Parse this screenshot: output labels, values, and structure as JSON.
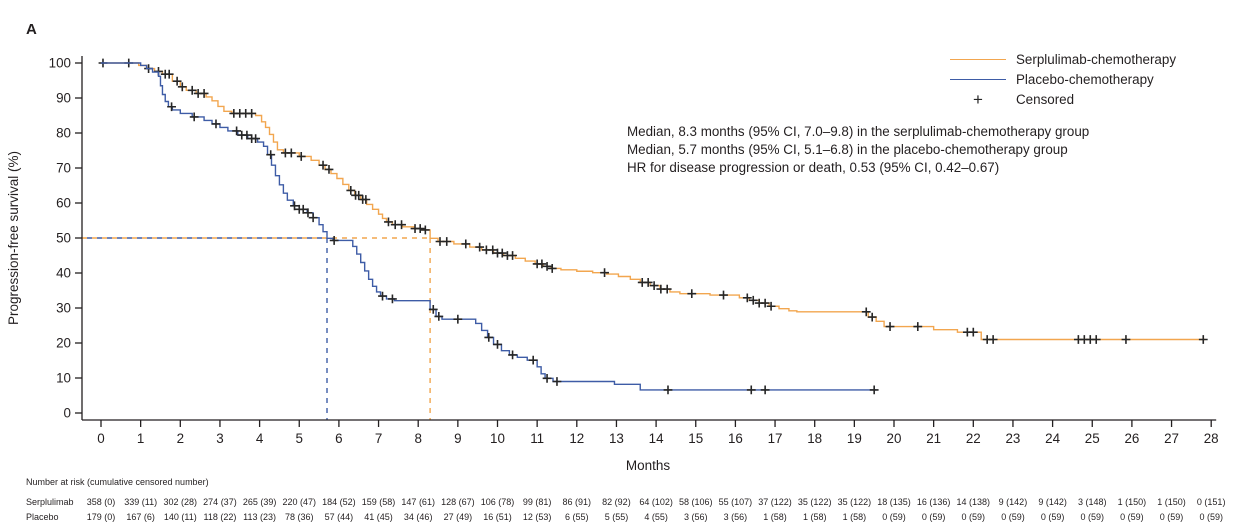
{
  "panel_label": "A",
  "colors": {
    "serplulimab": "#F2A64F",
    "placebo": "#3E5CA6",
    "censor": "#262626",
    "axis": "#231f20"
  },
  "legend": {
    "items": [
      {
        "label": "Serplulimab-chemotherapy",
        "marker": "line",
        "color_key": "serplulimab"
      },
      {
        "label": "Placebo-chemotherapy",
        "marker": "line",
        "color_key": "placebo"
      },
      {
        "label": "Censored",
        "marker": "plus",
        "plus_glyph": "+"
      }
    ]
  },
  "annotation": {
    "lines": [
      "Median, 8.3 months (95% CI, 7.0–9.8) in the serplulimab-chemotherapy group",
      "Median, 5.7 months (95% CI, 5.1–6.8) in the placebo-chemotherapy group",
      "HR for disease progression or death, 0.53 (95% CI, 0.42–0.67)"
    ]
  },
  "chart_data": {
    "type": "line",
    "subtype": "kaplan-meier-step",
    "title": "",
    "xlabel": "Months",
    "ylabel": "Progression-free survival (%)",
    "xlim": [
      0,
      28
    ],
    "ylim": [
      0,
      100
    ],
    "xticks": [
      0,
      1,
      2,
      3,
      4,
      5,
      6,
      7,
      8,
      9,
      10,
      11,
      12,
      13,
      14,
      15,
      16,
      17,
      18,
      19,
      20,
      21,
      22,
      23,
      24,
      25,
      26,
      27,
      28
    ],
    "yticks": [
      0,
      10,
      20,
      30,
      40,
      50,
      60,
      70,
      80,
      90,
      100
    ],
    "grid": false,
    "legend_position": "top-right",
    "reference_level_pct": 50,
    "medians": [
      {
        "group": "Serplulimab-chemotherapy",
        "months": 8.3,
        "ci95": "7.0–9.8",
        "color_key": "serplulimab"
      },
      {
        "group": "Placebo-chemotherapy",
        "months": 5.7,
        "ci95": "5.1–6.8",
        "color_key": "placebo"
      }
    ],
    "hazard_ratio": {
      "value": 0.53,
      "ci95": "0.42–0.67",
      "event": "disease progression or death"
    },
    "series": [
      {
        "name": "Serplulimab-chemotherapy",
        "color_key": "serplulimab",
        "end_month": 27.85,
        "points": [
          [
            0,
            100
          ],
          [
            0.95,
            99.3
          ],
          [
            1.15,
            98.4
          ],
          [
            1.35,
            97.6
          ],
          [
            1.55,
            96.8
          ],
          [
            1.8,
            94.8
          ],
          [
            2.0,
            93.2
          ],
          [
            2.15,
            92.2
          ],
          [
            2.4,
            91.3
          ],
          [
            2.65,
            90.3
          ],
          [
            2.8,
            89.2
          ],
          [
            2.95,
            87.6
          ],
          [
            3.1,
            86.2
          ],
          [
            3.3,
            85.6
          ],
          [
            3.9,
            85.0
          ],
          [
            4.05,
            83.2
          ],
          [
            4.15,
            81.6
          ],
          [
            4.25,
            79.6
          ],
          [
            4.35,
            77.4
          ],
          [
            4.45,
            75.2
          ],
          [
            4.6,
            74.3
          ],
          [
            5.0,
            73.3
          ],
          [
            5.3,
            72.2
          ],
          [
            5.5,
            70.8
          ],
          [
            5.65,
            69.6
          ],
          [
            5.8,
            68.4
          ],
          [
            5.95,
            67.0
          ],
          [
            6.1,
            65.3
          ],
          [
            6.25,
            63.6
          ],
          [
            6.4,
            62.2
          ],
          [
            6.55,
            61.0
          ],
          [
            6.7,
            59.6
          ],
          [
            6.85,
            58.2
          ],
          [
            7.0,
            56.8
          ],
          [
            7.1,
            55.6
          ],
          [
            7.2,
            54.6
          ],
          [
            7.35,
            53.8
          ],
          [
            7.6,
            53.2
          ],
          [
            7.9,
            52.7
          ],
          [
            8.1,
            52.3
          ],
          [
            8.3,
            49.9
          ],
          [
            8.5,
            49.0
          ],
          [
            8.9,
            48.3
          ],
          [
            9.3,
            47.4
          ],
          [
            9.6,
            46.6
          ],
          [
            9.9,
            45.7
          ],
          [
            10.15,
            45.0
          ],
          [
            10.45,
            44.2
          ],
          [
            10.7,
            43.4
          ],
          [
            10.95,
            42.6
          ],
          [
            11.15,
            41.9
          ],
          [
            11.35,
            41.3
          ],
          [
            11.6,
            40.9
          ],
          [
            12.0,
            40.5
          ],
          [
            12.4,
            40.1
          ],
          [
            12.75,
            39.7
          ],
          [
            13.05,
            39.0
          ],
          [
            13.35,
            38.2
          ],
          [
            13.6,
            37.3
          ],
          [
            13.85,
            36.4
          ],
          [
            14.1,
            35.4
          ],
          [
            14.35,
            34.6
          ],
          [
            14.6,
            34.1
          ],
          [
            15.36,
            33.7
          ],
          [
            16.1,
            32.9
          ],
          [
            16.35,
            32.2
          ],
          [
            16.6,
            31.4
          ],
          [
            16.85,
            30.5
          ],
          [
            17.1,
            29.8
          ],
          [
            17.35,
            29.2
          ],
          [
            17.55,
            28.9
          ],
          [
            19.35,
            27.4
          ],
          [
            19.55,
            26.2
          ],
          [
            19.75,
            24.7
          ],
          [
            21.0,
            23.8
          ],
          [
            21.6,
            23.1
          ],
          [
            22.2,
            21.0
          ]
        ],
        "censor_months": [
          0.05,
          0.7,
          1.2,
          1.45,
          1.62,
          1.72,
          1.92,
          2.05,
          2.3,
          2.45,
          2.6,
          3.35,
          3.5,
          3.65,
          3.8,
          4.65,
          4.8,
          5.05,
          5.6,
          5.75,
          6.3,
          6.42,
          6.5,
          6.6,
          6.68,
          7.25,
          7.42,
          7.58,
          7.92,
          8.05,
          8.18,
          8.55,
          8.72,
          9.2,
          9.55,
          9.72,
          9.88,
          10.0,
          10.12,
          10.25,
          10.38,
          11.0,
          11.12,
          11.25,
          11.38,
          12.7,
          13.65,
          13.8,
          13.95,
          14.12,
          14.28,
          14.9,
          15.7,
          16.3,
          16.45,
          16.6,
          16.75,
          16.9,
          19.3,
          19.45,
          19.9,
          20.6,
          21.85,
          22.0,
          22.35,
          22.5,
          24.65,
          24.8,
          24.95,
          25.1,
          25.85,
          27.8
        ]
      },
      {
        "name": "Placebo-chemotherapy",
        "color_key": "placebo",
        "end_month": 19.55,
        "points": [
          [
            0,
            100
          ],
          [
            1.0,
            99.3
          ],
          [
            1.15,
            98.4
          ],
          [
            1.3,
            97.4
          ],
          [
            1.45,
            96.2
          ],
          [
            1.5,
            93.5
          ],
          [
            1.55,
            91.0
          ],
          [
            1.62,
            89.0
          ],
          [
            1.7,
            87.5
          ],
          [
            1.8,
            86.6
          ],
          [
            2.0,
            85.6
          ],
          [
            2.3,
            84.6
          ],
          [
            2.6,
            83.6
          ],
          [
            2.8,
            82.6
          ],
          [
            3.0,
            81.6
          ],
          [
            3.2,
            80.6
          ],
          [
            3.45,
            79.4
          ],
          [
            3.7,
            78.4
          ],
          [
            3.95,
            77.4
          ],
          [
            4.1,
            76.2
          ],
          [
            4.2,
            73.8
          ],
          [
            4.3,
            70.8
          ],
          [
            4.4,
            67.8
          ],
          [
            4.5,
            65.2
          ],
          [
            4.6,
            62.8
          ],
          [
            4.7,
            60.8
          ],
          [
            4.85,
            59.2
          ],
          [
            5.0,
            58.2
          ],
          [
            5.2,
            57.2
          ],
          [
            5.35,
            55.8
          ],
          [
            5.5,
            53.8
          ],
          [
            5.6,
            51.8
          ],
          [
            5.7,
            49.9
          ],
          [
            5.85,
            49.3
          ],
          [
            6.35,
            47.6
          ],
          [
            6.45,
            45.4
          ],
          [
            6.55,
            43.0
          ],
          [
            6.65,
            40.6
          ],
          [
            6.75,
            38.2
          ],
          [
            6.85,
            36.2
          ],
          [
            6.95,
            34.6
          ],
          [
            7.05,
            33.4
          ],
          [
            7.2,
            32.6
          ],
          [
            7.4,
            32.1
          ],
          [
            8.3,
            29.6
          ],
          [
            8.45,
            27.6
          ],
          [
            8.6,
            26.8
          ],
          [
            9.45,
            25.6
          ],
          [
            9.6,
            23.6
          ],
          [
            9.75,
            21.6
          ],
          [
            9.9,
            19.6
          ],
          [
            10.1,
            17.8
          ],
          [
            10.3,
            16.6
          ],
          [
            10.5,
            15.9
          ],
          [
            10.75,
            15.1
          ],
          [
            11.0,
            13.2
          ],
          [
            11.1,
            11.2
          ],
          [
            11.2,
            9.9
          ],
          [
            11.4,
            9.0
          ],
          [
            12.95,
            8.2
          ],
          [
            13.6,
            6.6
          ]
        ],
        "censor_months": [
          1.78,
          2.35,
          2.9,
          3.42,
          3.55,
          3.68,
          3.8,
          3.9,
          4.28,
          4.88,
          5.0,
          5.1,
          5.22,
          5.35,
          5.88,
          7.1,
          7.35,
          8.38,
          8.52,
          9.0,
          9.78,
          10.0,
          10.38,
          10.9,
          11.25,
          11.5,
          14.3,
          16.4,
          16.75,
          19.5
        ]
      }
    ]
  },
  "risk_table": {
    "header": "Number at risk (cumulative censored number)",
    "rows": [
      {
        "label": "Serplulimab",
        "values": [
          "358 (0)",
          "339 (11)",
          "302 (28)",
          "274 (37)",
          "265 (39)",
          "220 (47)",
          "184 (52)",
          "159 (58)",
          "147 (61)",
          "128 (67)",
          "106 (78)",
          "99 (81)",
          "86 (91)",
          "82 (92)",
          "64 (102)",
          "58 (106)",
          "55 (107)",
          "37 (122)",
          "35 (122)",
          "35 (122)",
          "18 (135)",
          "16 (136)",
          "14 (138)",
          "9 (142)",
          "9 (142)",
          "3 (148)",
          "1 (150)",
          "1 (150)",
          "0 (151)"
        ]
      },
      {
        "label": "Placebo",
        "values": [
          "179 (0)",
          "167 (6)",
          "140 (11)",
          "118 (22)",
          "113 (23)",
          "78 (36)",
          "57 (44)",
          "41 (45)",
          "34 (46)",
          "27 (49)",
          "16 (51)",
          "12 (53)",
          "6 (55)",
          "5 (55)",
          "4 (55)",
          "3 (56)",
          "3 (56)",
          "1 (58)",
          "1 (58)",
          "1 (58)",
          "0 (59)",
          "0 (59)",
          "0 (59)",
          "0 (59)",
          "0 (59)",
          "0 (59)",
          "0 (59)",
          "0 (59)",
          "0 (59)"
        ]
      }
    ]
  }
}
